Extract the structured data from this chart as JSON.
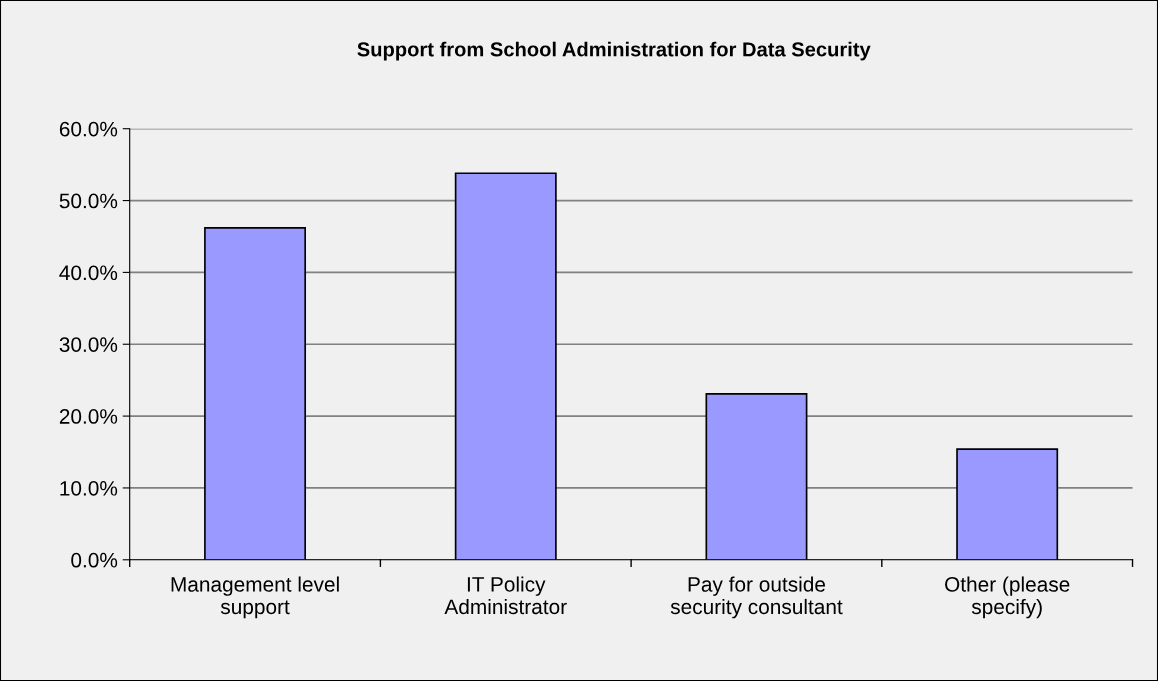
{
  "chart_data": {
    "type": "bar",
    "title": "Support from School Administration for Data Security",
    "categories": [
      "Management level\nsupport",
      "IT Policy\nAdministrator",
      "Pay for outside\nsecurity consultant",
      "Other (please\nspecify)"
    ],
    "values": [
      46.2,
      53.8,
      23.1,
      15.4
    ],
    "color": "#9999ff",
    "ylim": [
      0,
      60
    ],
    "yticks": [
      {
        "value": 0,
        "label": "0.0%"
      },
      {
        "value": 10,
        "label": "10.0%"
      },
      {
        "value": 20,
        "label": "20.0%"
      },
      {
        "value": 30,
        "label": "30.0%"
      },
      {
        "value": 40,
        "label": "40.0%"
      },
      {
        "value": 50,
        "label": "50.0%"
      },
      {
        "value": 60,
        "label": "60.0%"
      }
    ],
    "grid": "y",
    "legend": false
  }
}
